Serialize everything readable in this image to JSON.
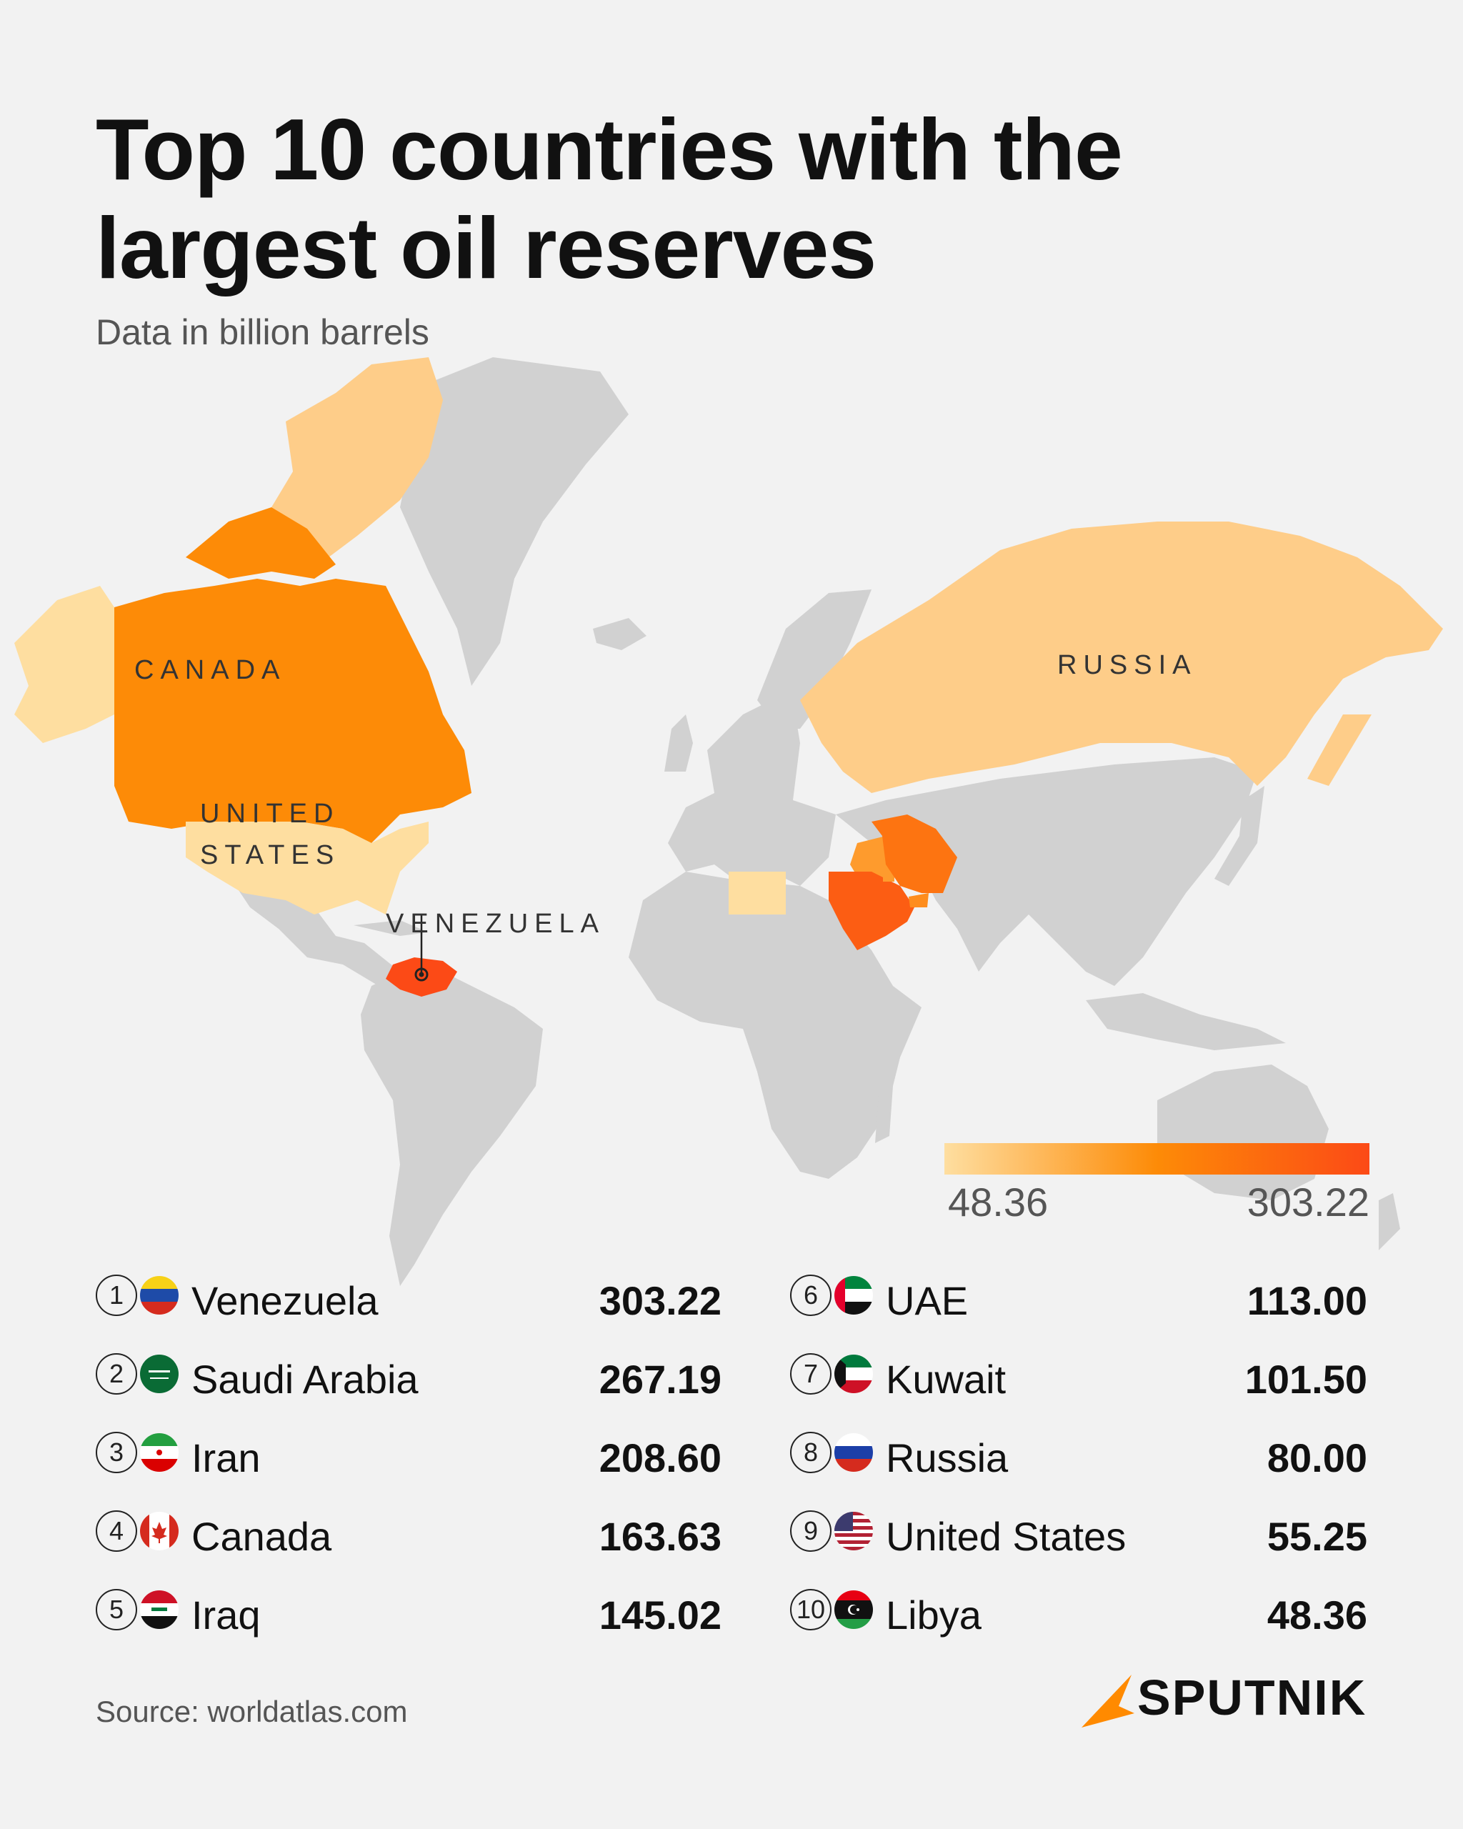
{
  "header": {
    "title": "Top 10 countries with the largest oil reserves",
    "subtitle": "Data in billion barrels"
  },
  "map": {
    "labels": {
      "canada": "CANADA",
      "us_line1": "UNITED",
      "us_line2": "STATES",
      "venezuela": "VENEZUELA",
      "russia": "RUSSIA"
    },
    "base_color": "#d1d1d1",
    "water_color": "#f2f2f2"
  },
  "legend": {
    "min_label": "48.36",
    "max_label": "303.22",
    "min": 48.36,
    "max": 303.22,
    "colors": [
      "#fedea0",
      "#fd8b07",
      "#fc4a16"
    ]
  },
  "chart_data": {
    "type": "choropleth map",
    "title": "Top 10 countries with the largest oil reserves",
    "subtitle": "Data in billion barrels",
    "unit": "billion barrels",
    "categories": [
      "Venezuela",
      "Saudi Arabia",
      "Iran",
      "Canada",
      "Iraq",
      "UAE",
      "Kuwait",
      "Russia",
      "United States",
      "Libya"
    ],
    "values": [
      303.22,
      267.19,
      208.6,
      163.63,
      145.02,
      113.0,
      101.5,
      80.0,
      55.25,
      48.36
    ],
    "value_labels": [
      "303.22",
      "267.19",
      "208.60",
      "163.63",
      "145.02",
      "113.00",
      "101.50",
      "80.00",
      "55.25",
      "48.36"
    ],
    "ranks": [
      "1",
      "2",
      "3",
      "4",
      "5",
      "6",
      "7",
      "8",
      "9",
      "10"
    ],
    "color_scale": {
      "min": 48.36,
      "max": 303.22,
      "colors": [
        "#fedea0",
        "#fd8b07",
        "#fc4a16"
      ]
    }
  },
  "footer": {
    "source": "Source: worldatlas.com",
    "brand": "SPUTNIK",
    "brand_color": "#ff8a00"
  }
}
